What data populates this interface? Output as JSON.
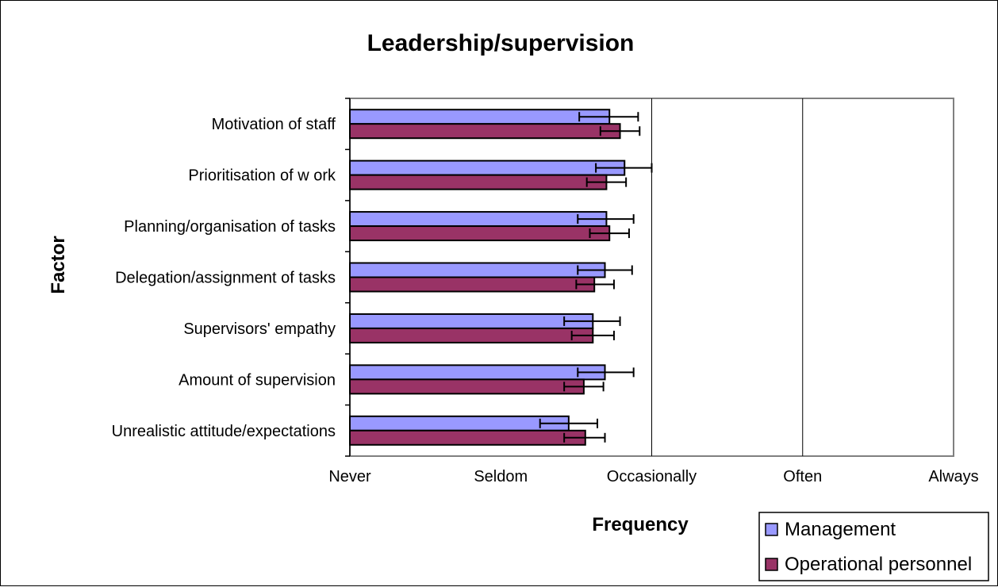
{
  "chart_data": {
    "type": "bar",
    "orientation": "horizontal",
    "title": "Leadership/supervision",
    "xlabel": "Frequency",
    "ylabel": "Factor",
    "x_ticks": [
      "Never",
      "Seldom",
      "Occasionally",
      "Often",
      "Always"
    ],
    "xlim": [
      0,
      4
    ],
    "grid": "vertical major gridlines",
    "legend_position": "bottom-right",
    "categories": [
      "Motivation of staff",
      "Prioritisation of w ork",
      "Planning/organisation of tasks",
      "Delegation/assignment of tasks",
      "Supervisors' empathy",
      "Amount of supervision",
      "Unrealistic attitude/expectations"
    ],
    "series": [
      {
        "name": "Management",
        "color": "#9999ff",
        "values": [
          1.72,
          1.82,
          1.7,
          1.69,
          1.61,
          1.69,
          1.45
        ],
        "error_low": [
          1.52,
          1.63,
          1.51,
          1.51,
          1.42,
          1.51,
          1.26
        ],
        "error_high": [
          1.91,
          2.0,
          1.88,
          1.87,
          1.79,
          1.88,
          1.64
        ]
      },
      {
        "name": "Operational personnel",
        "color": "#993366",
        "values": [
          1.79,
          1.7,
          1.72,
          1.62,
          1.61,
          1.55,
          1.56
        ],
        "error_low": [
          1.66,
          1.57,
          1.59,
          1.5,
          1.47,
          1.42,
          1.42
        ],
        "error_high": [
          1.92,
          1.83,
          1.85,
          1.75,
          1.75,
          1.68,
          1.69
        ]
      }
    ]
  }
}
